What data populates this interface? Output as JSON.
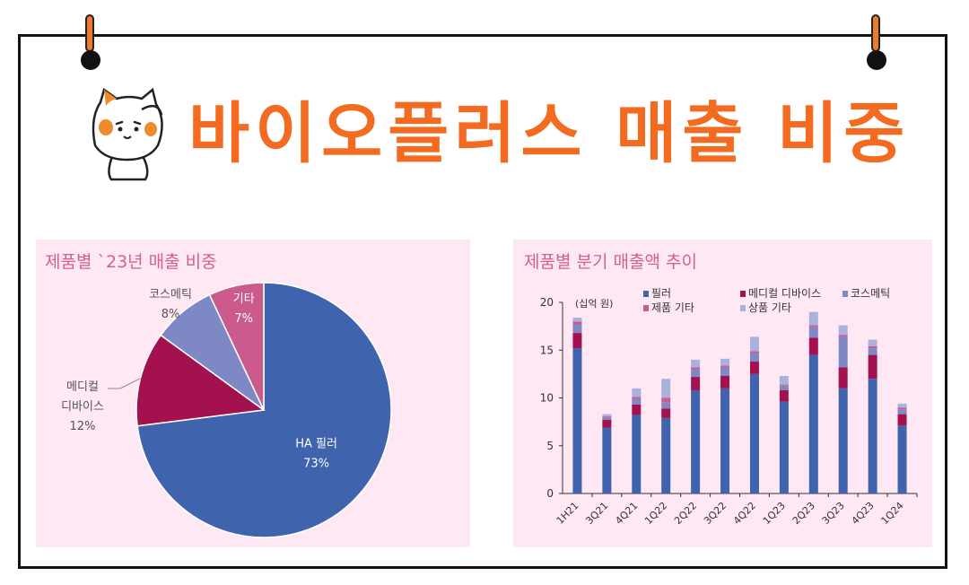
{
  "header": {
    "title": "바이오플러스 매출 비중"
  },
  "chart_data": [
    {
      "type": "pie",
      "title": "제품별 `23년 매출 비중",
      "slices": [
        {
          "label": "HA 필러",
          "value": 73,
          "color": "#3f63ad",
          "pct_label": "73%"
        },
        {
          "label": "메디컬 디바이스",
          "label_lines": [
            "메디컬",
            "디바이스"
          ],
          "value": 12,
          "color": "#a4114f",
          "pct_label": "12%"
        },
        {
          "label": "코스메틱",
          "value": 8,
          "color": "#7d88c4",
          "pct_label": "8%"
        },
        {
          "label": "기타",
          "value": 7,
          "color": "#cc5b8d",
          "pct_label": "7%"
        }
      ]
    },
    {
      "type": "bar",
      "stacked": true,
      "title": "제품별 분기 매출액 추이",
      "unit_label": "(십억 원)",
      "categories": [
        "1H21",
        "3Q21",
        "4Q21",
        "1Q22",
        "2Q22",
        "3Q22",
        "4Q22",
        "1Q23",
        "2Q23",
        "3Q23",
        "4Q23",
        "1Q24"
      ],
      "ylim": [
        0,
        20
      ],
      "yticks": [
        0,
        5,
        10,
        15,
        20
      ],
      "series": [
        {
          "name": "필러",
          "color": "#3f63ad",
          "values": [
            15.2,
            6.9,
            8.2,
            7.9,
            10.8,
            11.0,
            12.5,
            9.6,
            14.5,
            11.0,
            12.0,
            7.1
          ]
        },
        {
          "name": "메디컬 디바이스",
          "color": "#a4114f",
          "values": [
            1.6,
            0.8,
            1.1,
            1.0,
            1.4,
            1.3,
            1.3,
            1.2,
            1.8,
            2.2,
            2.5,
            1.2
          ]
        },
        {
          "name": "코스메틱",
          "color": "#7d88c4",
          "values": [
            0.9,
            0.3,
            0.6,
            0.6,
            0.8,
            0.9,
            0.9,
            0.5,
            1.1,
            3.2,
            0.7,
            0.5
          ]
        },
        {
          "name": "제품 기타",
          "color": "#cc5b8d",
          "values": [
            0.3,
            0.1,
            0.2,
            0.5,
            0.2,
            0.2,
            0.2,
            0.1,
            0.2,
            0.2,
            0.2,
            0.2
          ]
        },
        {
          "name": "상품 기타",
          "color": "#aab1dc",
          "values": [
            0.4,
            0.2,
            0.9,
            2.0,
            0.8,
            0.7,
            1.5,
            0.9,
            1.4,
            1.0,
            0.7,
            0.4
          ]
        }
      ],
      "legend_order": [
        0,
        1,
        2,
        3,
        4
      ]
    }
  ]
}
